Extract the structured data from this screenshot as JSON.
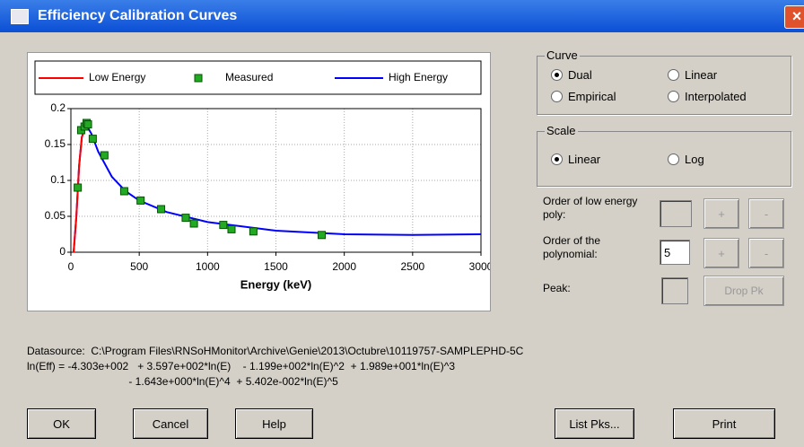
{
  "window": {
    "title": "Efficiency Calibration Curves"
  },
  "chart_data": {
    "type": "line",
    "xlabel": "Energy (keV)",
    "xlim": [
      0,
      3000
    ],
    "xticks": [
      0,
      500,
      1000,
      1500,
      2000,
      2500,
      3000
    ],
    "ylim": [
      0,
      0.2
    ],
    "yticks": [
      0,
      0.05,
      0.1,
      0.15,
      0.2
    ],
    "grid": true,
    "series": [
      {
        "name": "Low Energy",
        "color": "#ff0000",
        "kind": "line",
        "x": [
          20,
          40,
          60,
          80,
          100
        ],
        "values": [
          0,
          0.05,
          0.12,
          0.16,
          0.172
        ]
      },
      {
        "name": "Measured",
        "color": "#22aa22",
        "kind": "marker",
        "x": [
          50,
          75,
          100,
          115,
          125,
          160,
          245,
          390,
          510,
          660,
          840,
          900,
          1115,
          1175,
          1335,
          1835
        ],
        "values": [
          0.09,
          0.17,
          0.175,
          0.18,
          0.178,
          0.158,
          0.135,
          0.085,
          0.072,
          0.06,
          0.048,
          0.04,
          0.038,
          0.032,
          0.029,
          0.024
        ]
      },
      {
        "name": "High Energy",
        "color": "#0000ff",
        "kind": "line",
        "x": [
          20,
          40,
          60,
          80,
          100,
          120,
          150,
          200,
          300,
          400,
          500,
          700,
          1000,
          1500,
          2000,
          2500,
          3000
        ],
        "values": [
          0,
          0.05,
          0.12,
          0.16,
          0.172,
          0.175,
          0.165,
          0.14,
          0.105,
          0.085,
          0.072,
          0.056,
          0.042,
          0.03,
          0.025,
          0.024,
          0.025
        ]
      }
    ]
  },
  "curve_group": {
    "label": "Curve",
    "options": [
      {
        "label": "Dual",
        "checked": true
      },
      {
        "label": "Linear",
        "checked": false
      },
      {
        "label": "Empirical",
        "checked": false
      },
      {
        "label": "Interpolated",
        "checked": false
      }
    ]
  },
  "scale_group": {
    "label": "Scale",
    "options": [
      {
        "label": "Linear",
        "checked": true
      },
      {
        "label": "Log",
        "checked": false
      }
    ]
  },
  "low_order": {
    "label": "Order of low energy poly:",
    "plus": "+",
    "minus": "-"
  },
  "poly_order": {
    "label": "Order of the polynomial:",
    "value": "5",
    "plus": "+",
    "minus": "-"
  },
  "peak": {
    "label": "Peak:",
    "button": "Drop Pk"
  },
  "info": {
    "datasource": "Datasource:  C:\\Program Files\\RNSoHMonitor\\Archive\\Genie\\2013\\Octubre\\10119757-SAMPLEPHD-5C",
    "formula": [
      "ln(Eff) = -4.303e+002   + 3.597e+002*ln(E)    - 1.199e+002*ln(E)^2  + 1.989e+001*ln(E)^3",
      "                                  - 1.643e+000*ln(E)^4  + 5.402e-002*ln(E)^5"
    ]
  },
  "buttons": [
    "OK",
    "Cancel",
    "Help",
    "List Pks...",
    "Print"
  ]
}
